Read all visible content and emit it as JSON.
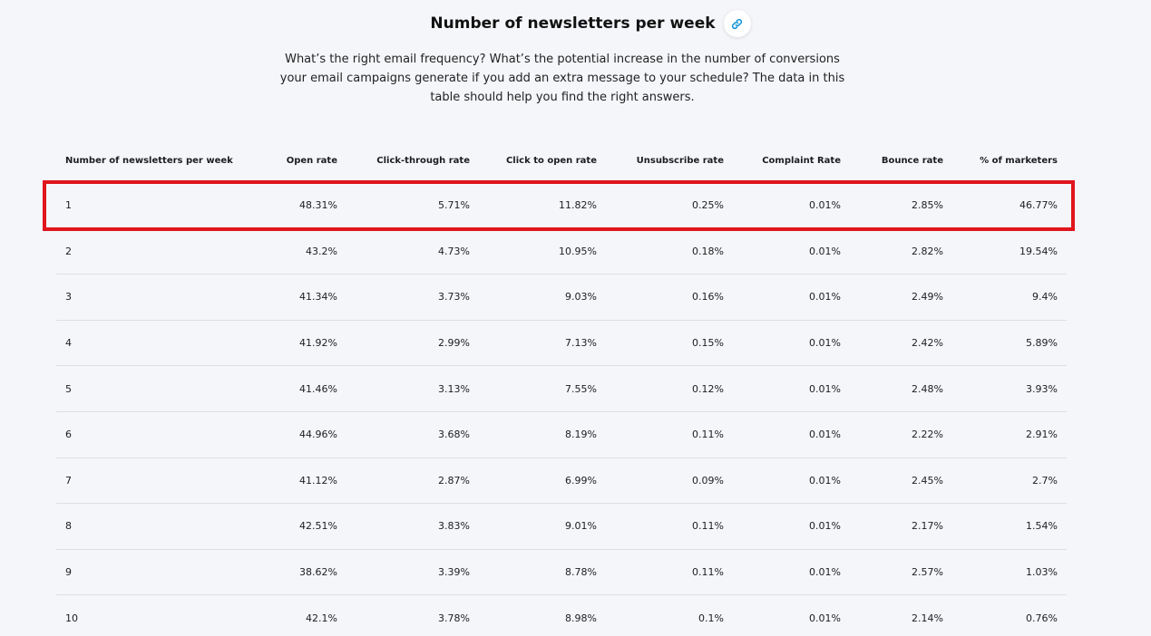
{
  "header": {
    "title": "Number of newsletters per week",
    "link_icon": "link-icon",
    "link_icon_color": "#1a9ad6"
  },
  "intro": "What’s the right email frequency? What’s the potential increase in the number of conversions your email campaigns generate if you add an extra message to your schedule? The data in this table should help you find the right answers.",
  "highlight_color": "#e0151d",
  "table": {
    "columns": [
      "Number of newsletters per week",
      "Open rate",
      "Click-through rate",
      "Click to open rate",
      "Unsubscribe rate",
      "Complaint Rate",
      "Bounce rate",
      "% of marketers"
    ],
    "rows": [
      [
        "1",
        "48.31%",
        "5.71%",
        "11.82%",
        "0.25%",
        "0.01%",
        "2.85%",
        "46.77%"
      ],
      [
        "2",
        "43.2%",
        "4.73%",
        "10.95%",
        "0.18%",
        "0.01%",
        "2.82%",
        "19.54%"
      ],
      [
        "3",
        "41.34%",
        "3.73%",
        "9.03%",
        "0.16%",
        "0.01%",
        "2.49%",
        "9.4%"
      ],
      [
        "4",
        "41.92%",
        "2.99%",
        "7.13%",
        "0.15%",
        "0.01%",
        "2.42%",
        "5.89%"
      ],
      [
        "5",
        "41.46%",
        "3.13%",
        "7.55%",
        "0.12%",
        "0.01%",
        "2.48%",
        "3.93%"
      ],
      [
        "6",
        "44.96%",
        "3.68%",
        "8.19%",
        "0.11%",
        "0.01%",
        "2.22%",
        "2.91%"
      ],
      [
        "7",
        "41.12%",
        "2.87%",
        "6.99%",
        "0.09%",
        "0.01%",
        "2.45%",
        "2.7%"
      ],
      [
        "8",
        "42.51%",
        "3.83%",
        "9.01%",
        "0.11%",
        "0.01%",
        "2.17%",
        "1.54%"
      ],
      [
        "9",
        "38.62%",
        "3.39%",
        "8.78%",
        "0.11%",
        "0.01%",
        "2.57%",
        "1.03%"
      ],
      [
        "10",
        "42.1%",
        "3.78%",
        "8.98%",
        "0.1%",
        "0.01%",
        "2.14%",
        "0.76%"
      ]
    ]
  }
}
